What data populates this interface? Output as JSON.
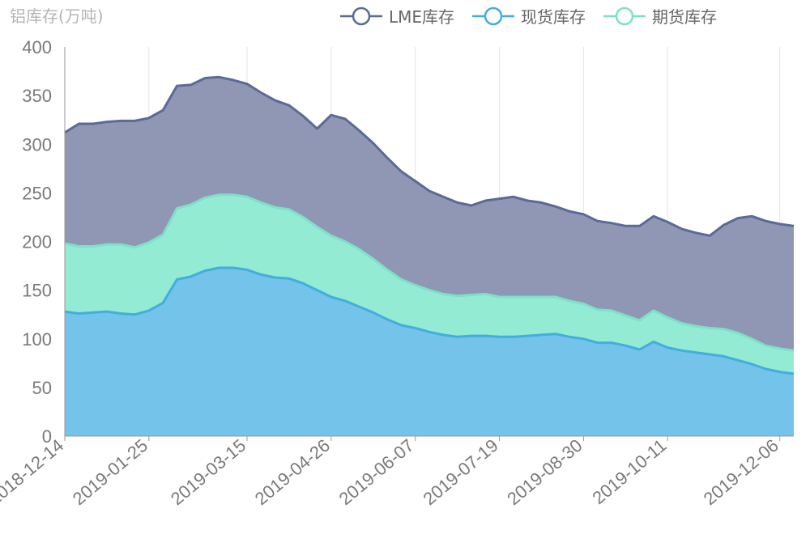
{
  "chart_data": {
    "type": "area",
    "ylabel": "铝库存(万吨)",
    "ylim": [
      0,
      400
    ],
    "yticks": [
      0,
      50,
      100,
      150,
      200,
      250,
      300,
      350,
      400
    ],
    "xlim": [
      "2018-12-14",
      "2019-12-13"
    ],
    "xticks": [
      "2018-12-14",
      "2019-01-25",
      "2019-03-15",
      "2019-04-26",
      "2019-06-07",
      "2019-07-19",
      "2019-08-30",
      "2019-10-11",
      "2019-12-06"
    ],
    "legend_position": "top",
    "grid": "vertical",
    "x": [
      "2018-12-14",
      "2018-12-21",
      "2018-12-28",
      "2019-01-04",
      "2019-01-11",
      "2019-01-18",
      "2019-01-25",
      "2019-02-01",
      "2019-02-08",
      "2019-02-15",
      "2019-02-22",
      "2019-03-01",
      "2019-03-08",
      "2019-03-15",
      "2019-03-22",
      "2019-03-29",
      "2019-04-05",
      "2019-04-12",
      "2019-04-19",
      "2019-04-26",
      "2019-05-03",
      "2019-05-10",
      "2019-05-17",
      "2019-05-24",
      "2019-05-31",
      "2019-06-07",
      "2019-06-14",
      "2019-06-21",
      "2019-06-28",
      "2019-07-05",
      "2019-07-12",
      "2019-07-19",
      "2019-07-26",
      "2019-08-02",
      "2019-08-09",
      "2019-08-16",
      "2019-08-23",
      "2019-08-30",
      "2019-09-06",
      "2019-09-13",
      "2019-09-20",
      "2019-09-27",
      "2019-10-04",
      "2019-10-11",
      "2019-10-18",
      "2019-10-25",
      "2019-11-01",
      "2019-11-08",
      "2019-11-15",
      "2019-11-22",
      "2019-11-29",
      "2019-12-06",
      "2019-12-13"
    ],
    "series": [
      {
        "name": "LME库存",
        "color": "#5b6a96",
        "fill": "#8f97b4",
        "values": [
          312,
          321,
          321,
          323,
          324,
          324,
          327,
          335,
          360,
          361,
          368,
          369,
          366,
          362,
          353,
          345,
          340,
          329,
          316,
          330,
          326,
          314,
          301,
          286,
          272,
          262,
          252,
          246,
          240,
          237,
          242,
          244,
          246,
          242,
          240,
          236,
          231,
          228,
          221,
          219,
          216,
          216,
          226,
          220,
          213,
          209,
          206,
          217,
          224,
          226,
          221,
          218,
          216
        ]
      },
      {
        "name": "期货库存",
        "color": "#7ee0c6",
        "fill": "#93ebd3",
        "values": [
          198,
          195,
          195,
          197,
          197,
          194,
          199,
          207,
          234,
          238,
          245,
          248,
          248,
          246,
          240,
          235,
          233,
          225,
          215,
          206,
          200,
          192,
          182,
          171,
          161,
          155,
          150,
          146,
          144,
          145,
          146,
          143,
          143,
          143,
          143,
          143,
          139,
          136,
          130,
          129,
          124,
          119,
          129,
          122,
          116,
          113,
          111,
          110,
          106,
          100,
          93,
          90,
          88
        ]
      },
      {
        "name": "现货库存",
        "color": "#42aee0",
        "fill": "#73c3ea",
        "values": [
          128,
          126,
          127,
          128,
          126,
          125,
          129,
          137,
          161,
          164,
          170,
          173,
          173,
          171,
          166,
          163,
          162,
          157,
          150,
          143,
          139,
          133,
          127,
          120,
          114,
          111,
          107,
          104,
          102,
          103,
          103,
          102,
          102,
          103,
          104,
          105,
          102,
          100,
          96,
          96,
          93,
          89,
          97,
          91,
          88,
          86,
          84,
          82,
          78,
          74,
          69,
          66,
          64
        ]
      }
    ]
  }
}
